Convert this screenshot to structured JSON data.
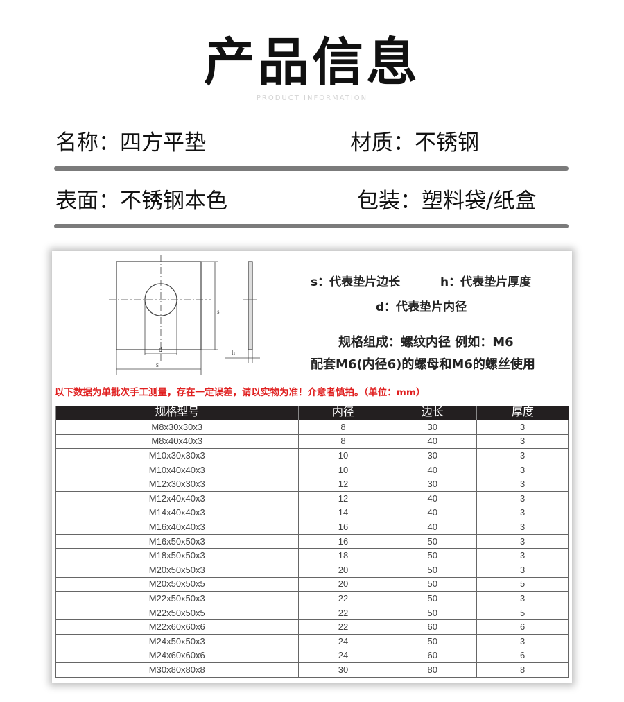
{
  "header": {
    "title": "产品信息",
    "subtitle": "PRODUCT INFORMATION"
  },
  "info": {
    "name": "名称：四方平垫",
    "material": "材质：不锈钢",
    "surface": "表面：不锈钢本色",
    "packaging": "包装：塑料袋/纸盒"
  },
  "diagram": {
    "labels": {
      "s": "s",
      "d": "d",
      "h": "h"
    },
    "legend_s": "s：代表垫片边长",
    "legend_h": "h：代表垫片厚度",
    "legend_d": "d：代表垫片内径",
    "spec_line1": "规格组成：螺纹内径 例如：M6",
    "spec_line2": "配套M6(内径6)的螺母和M6的螺丝使用"
  },
  "note": {
    "text": "以下数据为单批次手工测量，存在一定误差，请以实物为准！介意者慎拍。（单位：mm）",
    "color": "#e02020"
  },
  "table": {
    "headers": [
      "规格型号",
      "内径",
      "边长",
      "厚度"
    ],
    "rows": [
      [
        "M8x30x30x3",
        "8",
        "30",
        "3"
      ],
      [
        "M8x40x40x3",
        "8",
        "40",
        "3"
      ],
      [
        "M10x30x30x3",
        "10",
        "30",
        "3"
      ],
      [
        "M10x40x40x3",
        "10",
        "40",
        "3"
      ],
      [
        "M12x30x30x3",
        "12",
        "30",
        "3"
      ],
      [
        "M12x40x40x3",
        "12",
        "40",
        "3"
      ],
      [
        "M14x40x40x3",
        "14",
        "40",
        "3"
      ],
      [
        "M16x40x40x3",
        "16",
        "40",
        "3"
      ],
      [
        "M16x50x50x3",
        "16",
        "50",
        "3"
      ],
      [
        "M18x50x50x3",
        "18",
        "50",
        "3"
      ],
      [
        "M20x50x50x3",
        "20",
        "50",
        "3"
      ],
      [
        "M20x50x50x5",
        "20",
        "50",
        "5"
      ],
      [
        "M22x50x50x3",
        "22",
        "50",
        "3"
      ],
      [
        "M22x50x50x5",
        "22",
        "50",
        "5"
      ],
      [
        "M22x60x60x6",
        "22",
        "60",
        "6"
      ],
      [
        "M24x50x50x3",
        "24",
        "50",
        "3"
      ],
      [
        "M24x60x60x6",
        "24",
        "60",
        "6"
      ],
      [
        "M30x80x80x8",
        "30",
        "80",
        "8"
      ]
    ]
  }
}
